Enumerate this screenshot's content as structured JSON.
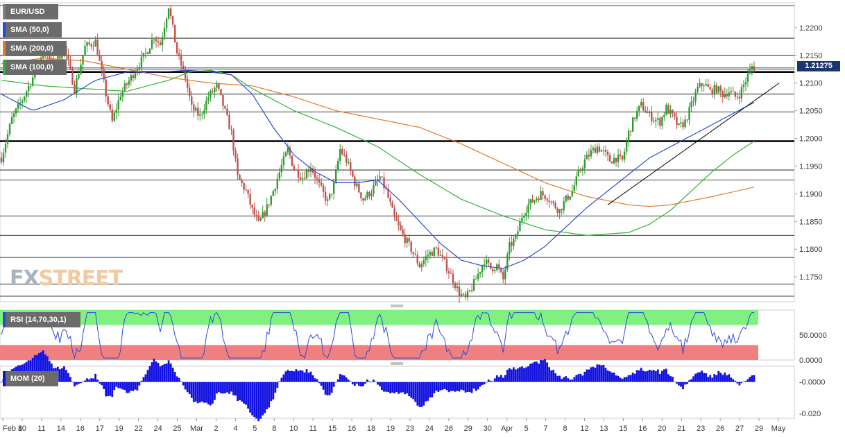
{
  "chart_data": {
    "type": "candlestick",
    "symbol": "EUR/USD",
    "indicators": [
      "SMA (50,0)",
      "SMA (200,0)",
      "SMA (100,0)"
    ],
    "current_price": "1.21275",
    "price_ylim": [
      1.1705,
      1.2245
    ],
    "price_ticks": [
      "1.2200",
      "1.2150",
      "1.2100",
      "1.2050",
      "1.2000",
      "1.1950",
      "1.1900",
      "1.1850",
      "1.1800",
      "1.1750"
    ],
    "x_labels": [
      "Feb 8",
      "10",
      "11",
      "14",
      "16",
      "17",
      "19",
      "22",
      "24",
      "25",
      "Mar",
      "2",
      "4",
      "5",
      "8",
      "10",
      "11",
      "15",
      "16",
      "18",
      "19",
      "23",
      "24",
      "26",
      "29",
      "30",
      "Apr",
      "5",
      "7",
      "8",
      "12",
      "13",
      "15",
      "16",
      "20",
      "21",
      "23",
      "26",
      "27",
      "29",
      "May"
    ],
    "close_path": [
      [
        0,
        1.1965
      ],
      [
        5,
        1.2035
      ],
      [
        10,
        1.207
      ],
      [
        15,
        1.211
      ],
      [
        20,
        1.216
      ],
      [
        25,
        1.213
      ],
      [
        30,
        1.2165
      ],
      [
        35,
        1.209
      ],
      [
        40,
        1.2165
      ],
      [
        45,
        1.2175
      ],
      [
        50,
        1.208
      ],
      [
        53,
        1.203
      ],
      [
        57,
        1.208
      ],
      [
        62,
        1.211
      ],
      [
        66,
        1.2135
      ],
      [
        70,
        1.216
      ],
      [
        73,
        1.2185
      ],
      [
        76,
        1.217
      ],
      [
        80,
        1.224
      ],
      [
        84,
        1.2155
      ],
      [
        88,
        1.211
      ],
      [
        91,
        1.2055
      ],
      [
        95,
        1.204
      ],
      [
        99,
        1.2075
      ],
      [
        103,
        1.2095
      ],
      [
        106,
        1.206
      ],
      [
        110,
        1.201
      ],
      [
        113,
        1.193
      ],
      [
        117,
        1.1905
      ],
      [
        120,
        1.187
      ],
      [
        123,
        1.1845
      ],
      [
        127,
        1.1875
      ],
      [
        130,
        1.1905
      ],
      [
        134,
        1.195
      ],
      [
        137,
        1.198
      ],
      [
        140,
        1.1945
      ],
      [
        144,
        1.193
      ],
      [
        148,
        1.195
      ],
      [
        152,
        1.1915
      ],
      [
        156,
        1.1885
      ],
      [
        159,
        1.1915
      ],
      [
        162,
        1.198
      ],
      [
        165,
        1.196
      ],
      [
        169,
        1.192
      ],
      [
        173,
        1.189
      ],
      [
        177,
        1.1905
      ],
      [
        181,
        1.193
      ],
      [
        184,
        1.1905
      ],
      [
        188,
        1.1855
      ],
      [
        192,
        1.1825
      ],
      [
        196,
        1.18
      ],
      [
        200,
        1.177
      ],
      [
        204,
        1.179
      ],
      [
        208,
        1.18
      ],
      [
        212,
        1.1775
      ],
      [
        216,
        1.1745
      ],
      [
        219,
        1.172
      ],
      [
        222,
        1.171
      ],
      [
        225,
        1.173
      ],
      [
        228,
        1.1755
      ],
      [
        231,
        1.178
      ],
      [
        234,
        1.1765
      ],
      [
        237,
        1.177
      ],
      [
        240,
        1.1745
      ],
      [
        243,
        1.1805
      ],
      [
        246,
        1.182
      ],
      [
        249,
        1.186
      ],
      [
        252,
        1.188
      ],
      [
        255,
        1.189
      ],
      [
        258,
        1.19
      ],
      [
        261,
        1.1895
      ],
      [
        264,
        1.188
      ],
      [
        267,
        1.187
      ],
      [
        270,
        1.189
      ],
      [
        273,
        1.1905
      ],
      [
        276,
        1.1935
      ],
      [
        279,
        1.196
      ],
      [
        282,
        1.1975
      ],
      [
        285,
        1.1985
      ],
      [
        288,
        1.1975
      ],
      [
        291,
        1.196
      ],
      [
        294,
        1.1965
      ],
      [
        297,
        1.196
      ],
      [
        300,
        1.201
      ],
      [
        303,
        1.204
      ],
      [
        306,
        1.206
      ],
      [
        309,
        1.2045
      ],
      [
        312,
        1.2035
      ],
      [
        315,
        1.203
      ],
      [
        318,
        1.2055
      ],
      [
        321,
        1.204
      ],
      [
        324,
        1.202
      ],
      [
        327,
        1.203
      ],
      [
        330,
        1.206
      ],
      [
        333,
        1.209
      ],
      [
        336,
        1.21
      ],
      [
        339,
        1.2085
      ],
      [
        342,
        1.209
      ],
      [
        345,
        1.208
      ],
      [
        348,
        1.2085
      ],
      [
        351,
        1.2075
      ],
      [
        353,
        1.208
      ],
      [
        356,
        1.2105
      ],
      [
        359,
        1.213
      ],
      [
        360,
        1.2128
      ]
    ],
    "sma50_path": [
      [
        0,
        1.208
      ],
      [
        15,
        1.205
      ],
      [
        30,
        1.207
      ],
      [
        45,
        1.2105
      ],
      [
        60,
        1.212
      ],
      [
        75,
        1.212
      ],
      [
        90,
        1.2123
      ],
      [
        100,
        1.212
      ],
      [
        110,
        1.2115
      ],
      [
        120,
        1.208
      ],
      [
        130,
        1.202
      ],
      [
        140,
        1.197
      ],
      [
        150,
        1.194
      ],
      [
        160,
        1.192
      ],
      [
        170,
        1.192
      ],
      [
        180,
        1.1925
      ],
      [
        190,
        1.189
      ],
      [
        200,
        1.185
      ],
      [
        210,
        1.181
      ],
      [
        220,
        1.178
      ],
      [
        230,
        1.177
      ],
      [
        240,
        1.1765
      ],
      [
        250,
        1.178
      ],
      [
        260,
        1.1805
      ],
      [
        270,
        1.184
      ],
      [
        280,
        1.1875
      ],
      [
        290,
        1.1905
      ],
      [
        300,
        1.1935
      ],
      [
        310,
        1.1965
      ],
      [
        320,
        1.1985
      ],
      [
        330,
        1.2005
      ],
      [
        340,
        1.2025
      ],
      [
        350,
        1.2045
      ],
      [
        360,
        1.2065
      ]
    ],
    "sma200_path": [
      [
        0,
        1.2135
      ],
      [
        20,
        1.2145
      ],
      [
        40,
        1.214
      ],
      [
        60,
        1.2125
      ],
      [
        80,
        1.211
      ],
      [
        100,
        1.21
      ],
      [
        120,
        1.2095
      ],
      [
        140,
        1.2075
      ],
      [
        160,
        1.205
      ],
      [
        180,
        1.2035
      ],
      [
        200,
        1.202
      ],
      [
        220,
        1.199
      ],
      [
        240,
        1.1955
      ],
      [
        260,
        1.192
      ],
      [
        280,
        1.1895
      ],
      [
        300,
        1.188
      ],
      [
        310,
        1.1877
      ],
      [
        320,
        1.188
      ],
      [
        340,
        1.1895
      ],
      [
        360,
        1.1912
      ]
    ],
    "sma100_path": [
      [
        0,
        1.2105
      ],
      [
        20,
        1.2095
      ],
      [
        40,
        1.209
      ],
      [
        60,
        1.2085
      ],
      [
        80,
        1.2105
      ],
      [
        90,
        1.212
      ],
      [
        100,
        1.2123
      ],
      [
        110,
        1.2115
      ],
      [
        120,
        1.209
      ],
      [
        140,
        1.205
      ],
      [
        160,
        1.202
      ],
      [
        180,
        1.1985
      ],
      [
        200,
        1.1935
      ],
      [
        220,
        1.189
      ],
      [
        240,
        1.186
      ],
      [
        260,
        1.1835
      ],
      [
        280,
        1.1825
      ],
      [
        300,
        1.183
      ],
      [
        310,
        1.1845
      ],
      [
        320,
        1.187
      ],
      [
        330,
        1.1905
      ],
      [
        340,
        1.194
      ],
      [
        350,
        1.197
      ],
      [
        360,
        1.1995
      ]
    ],
    "trendline": [
      [
        290,
        1.188
      ],
      [
        372,
        1.21
      ]
    ],
    "hlines": [
      1.224,
      1.2181,
      1.215,
      1.2125,
      1.212,
      1.208,
      1.2048,
      1.1995,
      1.1943,
      1.1925,
      1.186,
      1.1825,
      1.1785,
      1.1737,
      1.1715
    ],
    "thick_hlines": [
      1.212,
      1.1995
    ],
    "rsi": {
      "label": "RSI (14,70,30,1)",
      "ticks": [
        "50.0000",
        "0.0000"
      ],
      "ylim": [
        0,
        100
      ]
    },
    "mom": {
      "label": "MOM (20)",
      "ticks": [
        "-0.0000",
        "-0.020"
      ],
      "ylim": [
        -0.023,
        0.01
      ]
    },
    "colors": {
      "up": "#2e9b2e",
      "down": "#c0504d",
      "sma50": "#2b4bd6",
      "sma200": "#e8792a",
      "sma100": "#33b533",
      "rsi_line": "#2b4bd6",
      "rsi_ob": "#80f080",
      "rsi_os": "#f08080",
      "mom": "#1010e0",
      "price_label": "#1a3570"
    }
  },
  "ui": {
    "symbol_tag": "EUR/USD",
    "sma50_tag": "SMA (50,0)",
    "sma200_tag": "SMA (200,0)",
    "sma100_tag": "SMA (100,0)",
    "rsi_tag": "RSI (14,70,30,1)",
    "mom_tag": "MOM (20)",
    "price_tag": "1.21275",
    "watermark_fx": "FX",
    "watermark_street": "STREET"
  }
}
